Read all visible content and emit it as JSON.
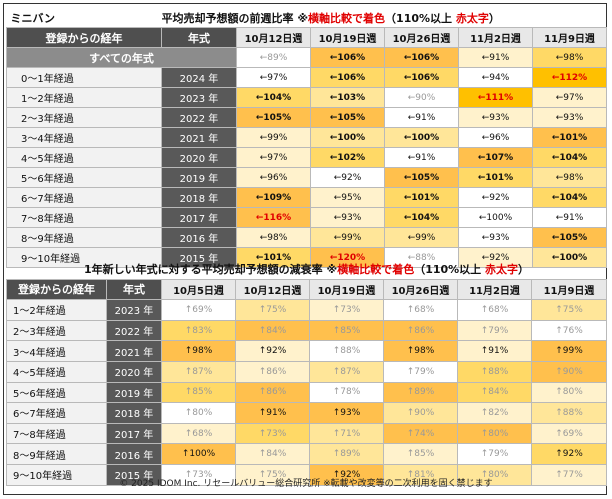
{
  "table1": {
    "category": "ミニバン",
    "title": "平均売却予想額の前週比率",
    "note_prefix": "※",
    "note_red": "横軸比較で着色",
    "note_suffix": "（110%以上 ",
    "note_bold_red": "赤太字",
    "note_close": "）",
    "col_elapsed": "登録からの経年",
    "col_year": "年式",
    "weeks": [
      "10月12日週",
      "10月19日週",
      "10月26日週",
      "11月2日週",
      "11月9日週"
    ],
    "all_label": "すべての年式",
    "all_cells": [
      {
        "text": "←89%",
        "bg": "#ffffff",
        "style": "muted"
      },
      {
        "text": "←106%",
        "bg": "#ffc04d",
        "style": "bold"
      },
      {
        "text": "←106%",
        "bg": "#ffc04d",
        "style": "bold"
      },
      {
        "text": "←91%",
        "bg": "#fff2cc",
        "style": ""
      },
      {
        "text": "←98%",
        "bg": "#ffd966",
        "style": ""
      }
    ],
    "rows": [
      {
        "elapsed": "0～1年経過",
        "year": "2024 年",
        "cells": [
          {
            "text": "←97%",
            "bg": "#ffffff",
            "style": ""
          },
          {
            "text": "←106%",
            "bg": "#ffd966",
            "style": "bold"
          },
          {
            "text": "←106%",
            "bg": "#ffd966",
            "style": "bold"
          },
          {
            "text": "←94%",
            "bg": "#ffffff",
            "style": ""
          },
          {
            "text": "←112%",
            "bg": "#ffc000",
            "style": "red"
          }
        ]
      },
      {
        "elapsed": "1～2年経過",
        "year": "2023 年",
        "cells": [
          {
            "text": "←104%",
            "bg": "#ffd966",
            "style": "bold"
          },
          {
            "text": "←103%",
            "bg": "#ffe699",
            "style": "bold"
          },
          {
            "text": "←90%",
            "bg": "#ffffff",
            "style": "muted"
          },
          {
            "text": "←111%",
            "bg": "#ffc000",
            "style": "red"
          },
          {
            "text": "←97%",
            "bg": "#fff2cc",
            "style": ""
          }
        ]
      },
      {
        "elapsed": "2～3年経過",
        "year": "2022 年",
        "cells": [
          {
            "text": "←105%",
            "bg": "#ffc04d",
            "style": "bold"
          },
          {
            "text": "←105%",
            "bg": "#ffc04d",
            "style": "bold"
          },
          {
            "text": "←91%",
            "bg": "#ffffff",
            "style": ""
          },
          {
            "text": "←93%",
            "bg": "#fff2cc",
            "style": ""
          },
          {
            "text": "←93%",
            "bg": "#fff2cc",
            "style": ""
          }
        ]
      },
      {
        "elapsed": "3～4年経過",
        "year": "2021 年",
        "cells": [
          {
            "text": "←99%",
            "bg": "#fff2cc",
            "style": ""
          },
          {
            "text": "←100%",
            "bg": "#ffe699",
            "style": "bold"
          },
          {
            "text": "←100%",
            "bg": "#ffe699",
            "style": "bold"
          },
          {
            "text": "←96%",
            "bg": "#ffffff",
            "style": ""
          },
          {
            "text": "←101%",
            "bg": "#ffc04d",
            "style": "bold"
          }
        ]
      },
      {
        "elapsed": "4～5年経過",
        "year": "2020 年",
        "cells": [
          {
            "text": "←97%",
            "bg": "#fff2cc",
            "style": ""
          },
          {
            "text": "←102%",
            "bg": "#ffd966",
            "style": "bold"
          },
          {
            "text": "←91%",
            "bg": "#ffffff",
            "style": ""
          },
          {
            "text": "←107%",
            "bg": "#ffc04d",
            "style": "bold"
          },
          {
            "text": "←104%",
            "bg": "#ffd966",
            "style": "bold"
          }
        ]
      },
      {
        "elapsed": "5～6年経過",
        "year": "2019 年",
        "cells": [
          {
            "text": "←96%",
            "bg": "#fff2cc",
            "style": ""
          },
          {
            "text": "←92%",
            "bg": "#ffffff",
            "style": ""
          },
          {
            "text": "←105%",
            "bg": "#ffc04d",
            "style": "bold"
          },
          {
            "text": "←101%",
            "bg": "#ffd966",
            "style": "bold"
          },
          {
            "text": "←98%",
            "bg": "#ffe699",
            "style": ""
          }
        ]
      },
      {
        "elapsed": "6～7年経過",
        "year": "2018 年",
        "cells": [
          {
            "text": "←109%",
            "bg": "#ffc04d",
            "style": "bold"
          },
          {
            "text": "←95%",
            "bg": "#fff2cc",
            "style": ""
          },
          {
            "text": "←101%",
            "bg": "#ffd966",
            "style": "bold"
          },
          {
            "text": "←92%",
            "bg": "#ffffff",
            "style": ""
          },
          {
            "text": "←104%",
            "bg": "#ffd966",
            "style": "bold"
          }
        ]
      },
      {
        "elapsed": "7～8年経過",
        "year": "2017 年",
        "cells": [
          {
            "text": "←116%",
            "bg": "#ffc04d",
            "style": "red"
          },
          {
            "text": "←93%",
            "bg": "#fff2cc",
            "style": ""
          },
          {
            "text": "←104%",
            "bg": "#ffd966",
            "style": "bold"
          },
          {
            "text": "←100%",
            "bg": "#ffffff",
            "style": ""
          },
          {
            "text": "←91%",
            "bg": "#ffffff",
            "style": ""
          }
        ]
      },
      {
        "elapsed": "8～9年経過",
        "year": "2016 年",
        "cells": [
          {
            "text": "←98%",
            "bg": "#fff2cc",
            "style": ""
          },
          {
            "text": "←99%",
            "bg": "#ffe699",
            "style": ""
          },
          {
            "text": "←99%",
            "bg": "#ffe699",
            "style": ""
          },
          {
            "text": "←93%",
            "bg": "#ffffff",
            "style": ""
          },
          {
            "text": "←105%",
            "bg": "#ffc04d",
            "style": "bold"
          }
        ]
      },
      {
        "elapsed": "9～10年経過",
        "year": "2015 年",
        "cells": [
          {
            "text": "←101%",
            "bg": "#ffd966",
            "style": "bold"
          },
          {
            "text": "←120%",
            "bg": "#ffc04d",
            "style": "red"
          },
          {
            "text": "←88%",
            "bg": "#ffffff",
            "style": "muted"
          },
          {
            "text": "←92%",
            "bg": "#fff2cc",
            "style": ""
          },
          {
            "text": "←100%",
            "bg": "#ffe699",
            "style": "bold"
          }
        ]
      }
    ]
  },
  "table2": {
    "title": "1年新しい年式に対する平均売却予想額の減衰率",
    "note_prefix": "※",
    "note_red": "横軸比較で着色",
    "note_suffix": "（110%以上 ",
    "note_bold_red": "赤太字",
    "note_close": "）",
    "col_elapsed": "登録からの経年",
    "col_year": "年式",
    "weeks": [
      "10月5日週",
      "10月12日週",
      "10月19日週",
      "10月26日週",
      "11月2日週",
      "11月9日週"
    ],
    "rows": [
      {
        "elapsed": "1～2年経過",
        "year": "2023 年",
        "cells": [
          {
            "text": "↑69%",
            "bg": "#ffffff",
            "style": "muted"
          },
          {
            "text": "↑75%",
            "bg": "#ffe699",
            "style": "muted"
          },
          {
            "text": "↑73%",
            "bg": "#fff2cc",
            "style": "muted"
          },
          {
            "text": "↑68%",
            "bg": "#ffffff",
            "style": "muted"
          },
          {
            "text": "↑68%",
            "bg": "#ffffff",
            "style": "muted"
          },
          {
            "text": "↑75%",
            "bg": "#ffe699",
            "style": "muted"
          }
        ]
      },
      {
        "elapsed": "2～3年経過",
        "year": "2022 年",
        "cells": [
          {
            "text": "↑83%",
            "bg": "#ffd966",
            "style": "muted"
          },
          {
            "text": "↑84%",
            "bg": "#ffc04d",
            "style": "muted"
          },
          {
            "text": "↑85%",
            "bg": "#ffc04d",
            "style": "muted"
          },
          {
            "text": "↑86%",
            "bg": "#ffc04d",
            "style": "muted"
          },
          {
            "text": "↑79%",
            "bg": "#fff2cc",
            "style": "muted"
          },
          {
            "text": "↑76%",
            "bg": "#ffffff",
            "style": "muted"
          }
        ]
      },
      {
        "elapsed": "3～4年経過",
        "year": "2021 年",
        "cells": [
          {
            "text": "↑98%",
            "bg": "#ffc04d",
            "style": ""
          },
          {
            "text": "↑92%",
            "bg": "#fff2cc",
            "style": ""
          },
          {
            "text": "↑88%",
            "bg": "#ffffff",
            "style": "muted"
          },
          {
            "text": "↑98%",
            "bg": "#ffc04d",
            "style": ""
          },
          {
            "text": "↑91%",
            "bg": "#fff2cc",
            "style": ""
          },
          {
            "text": "↑99%",
            "bg": "#ffc04d",
            "style": ""
          }
        ]
      },
      {
        "elapsed": "4～5年経過",
        "year": "2020 年",
        "cells": [
          {
            "text": "↑87%",
            "bg": "#ffe699",
            "style": "muted"
          },
          {
            "text": "↑86%",
            "bg": "#fff2cc",
            "style": "muted"
          },
          {
            "text": "↑87%",
            "bg": "#ffe699",
            "style": "muted"
          },
          {
            "text": "↑79%",
            "bg": "#ffffff",
            "style": "muted"
          },
          {
            "text": "↑88%",
            "bg": "#ffd966",
            "style": "muted"
          },
          {
            "text": "↑90%",
            "bg": "#ffc04d",
            "style": "muted"
          }
        ]
      },
      {
        "elapsed": "5～6年経過",
        "year": "2019 年",
        "cells": [
          {
            "text": "↑85%",
            "bg": "#ffd966",
            "style": "muted"
          },
          {
            "text": "↑86%",
            "bg": "#ffc04d",
            "style": "muted"
          },
          {
            "text": "↑78%",
            "bg": "#ffffff",
            "style": "muted"
          },
          {
            "text": "↑89%",
            "bg": "#ffc04d",
            "style": "muted"
          },
          {
            "text": "↑84%",
            "bg": "#ffd966",
            "style": "muted"
          },
          {
            "text": "↑80%",
            "bg": "#fff2cc",
            "style": "muted"
          }
        ]
      },
      {
        "elapsed": "6～7年経過",
        "year": "2018 年",
        "cells": [
          {
            "text": "↑80%",
            "bg": "#ffffff",
            "style": "muted"
          },
          {
            "text": "↑91%",
            "bg": "#ffc04d",
            "style": ""
          },
          {
            "text": "↑93%",
            "bg": "#ffc04d",
            "style": ""
          },
          {
            "text": "↑90%",
            "bg": "#ffe699",
            "style": "muted"
          },
          {
            "text": "↑82%",
            "bg": "#fff2cc",
            "style": "muted"
          },
          {
            "text": "↑88%",
            "bg": "#ffe699",
            "style": "muted"
          }
        ]
      },
      {
        "elapsed": "7～8年経過",
        "year": "2017 年",
        "cells": [
          {
            "text": "↑68%",
            "bg": "#fff2cc",
            "style": "muted"
          },
          {
            "text": "↑73%",
            "bg": "#ffd966",
            "style": "muted"
          },
          {
            "text": "↑71%",
            "bg": "#ffe699",
            "style": "muted"
          },
          {
            "text": "↑74%",
            "bg": "#ffc04d",
            "style": "muted"
          },
          {
            "text": "↑80%",
            "bg": "#ffc04d",
            "style": "muted"
          },
          {
            "text": "↑69%",
            "bg": "#fff2cc",
            "style": "muted"
          }
        ]
      },
      {
        "elapsed": "8～9年経過",
        "year": "2016 年",
        "cells": [
          {
            "text": "↑100%",
            "bg": "#ffc04d",
            "style": ""
          },
          {
            "text": "↑84%",
            "bg": "#fff2cc",
            "style": "muted"
          },
          {
            "text": "↑89%",
            "bg": "#ffe699",
            "style": "muted"
          },
          {
            "text": "↑85%",
            "bg": "#fff2cc",
            "style": "muted"
          },
          {
            "text": "↑79%",
            "bg": "#ffffff",
            "style": "muted"
          },
          {
            "text": "↑92%",
            "bg": "#ffd966",
            "style": ""
          }
        ]
      },
      {
        "elapsed": "9～10年経過",
        "year": "2015 年",
        "cells": [
          {
            "text": "↑73%",
            "bg": "#ffffff",
            "style": "muted"
          },
          {
            "text": "↑75%",
            "bg": "#fff2cc",
            "style": "muted"
          },
          {
            "text": "↑92%",
            "bg": "#ffc04d",
            "style": ""
          },
          {
            "text": "↑81%",
            "bg": "#ffe699",
            "style": "muted"
          },
          {
            "text": "↑80%",
            "bg": "#ffe699",
            "style": "muted"
          },
          {
            "text": "↑77%",
            "bg": "#fff2cc",
            "style": "muted"
          }
        ]
      }
    ]
  },
  "footer": "© 2025 IDOM Inc. リセールバリュー総合研究所 ※転載や改変等の二次利用を固く禁じます"
}
